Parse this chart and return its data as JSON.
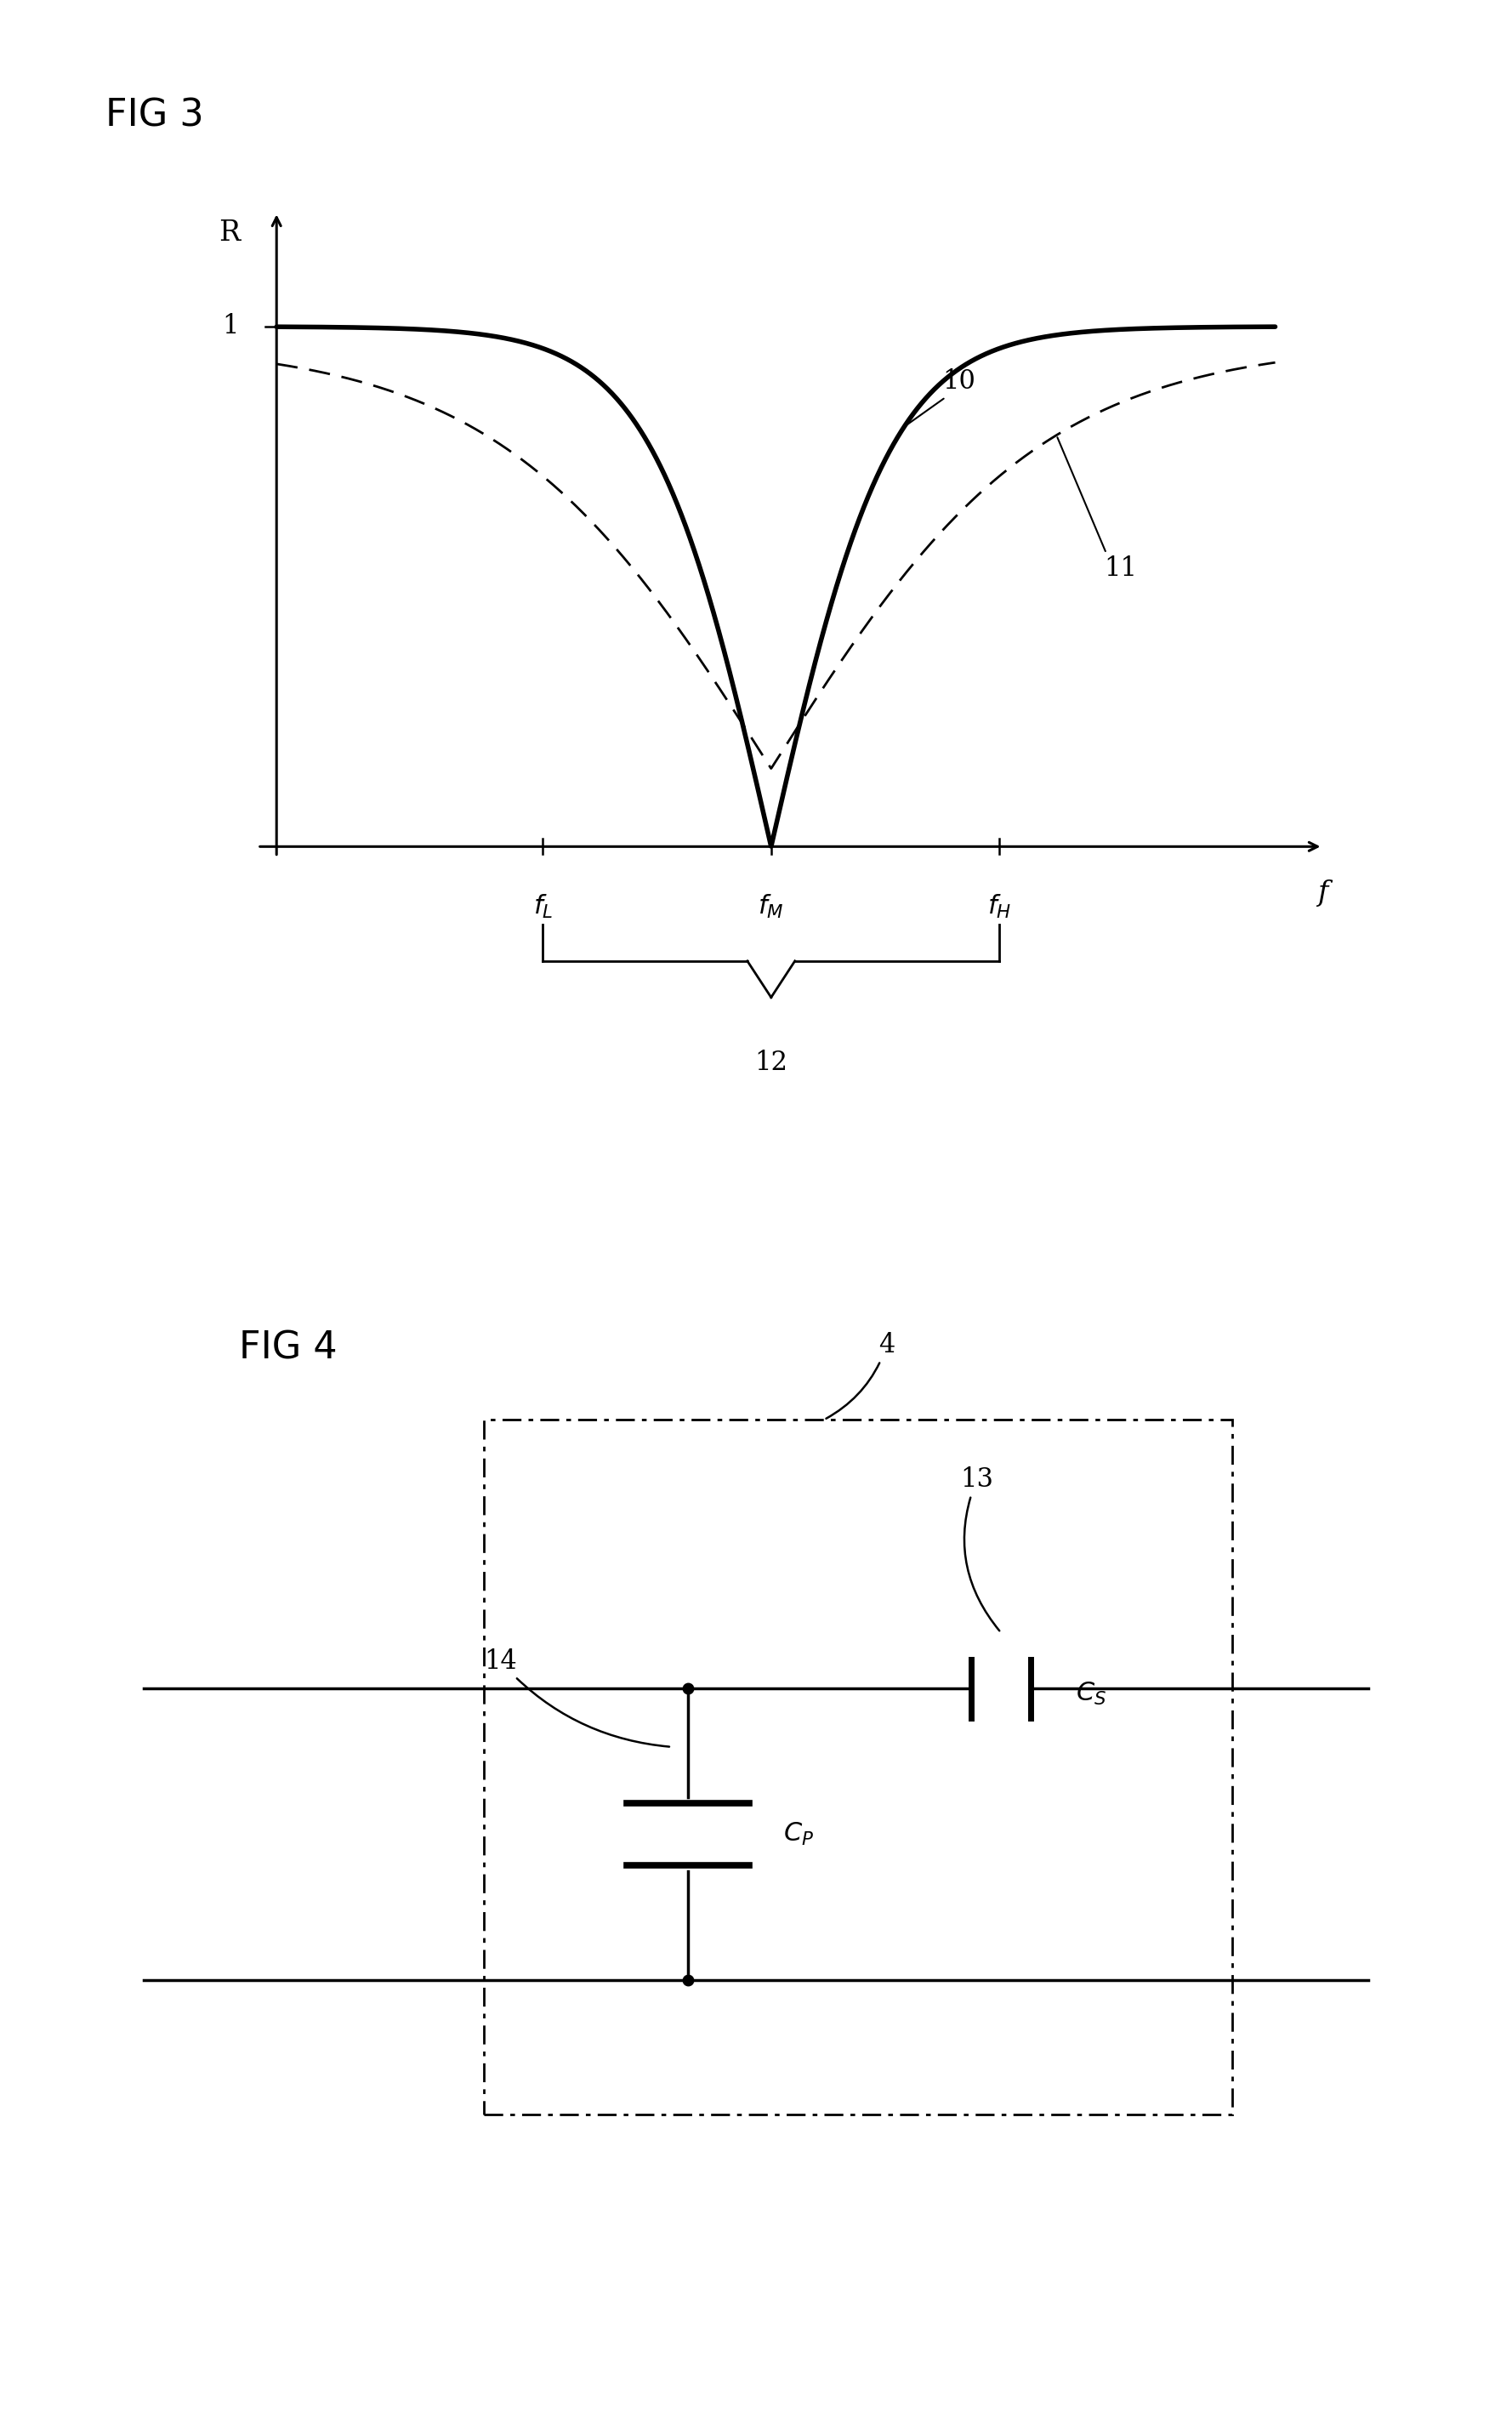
{
  "fig3_title": "FIG 3",
  "fig4_title": "FIG 4",
  "background_color": "#ffffff",
  "line_color": "#000000",
  "fL": 0.28,
  "fM": 0.52,
  "fH": 0.76,
  "title_fontsize": 32,
  "axis_label_fontsize": 24,
  "tick_label_fontsize": 22,
  "annot_fontsize": 22
}
